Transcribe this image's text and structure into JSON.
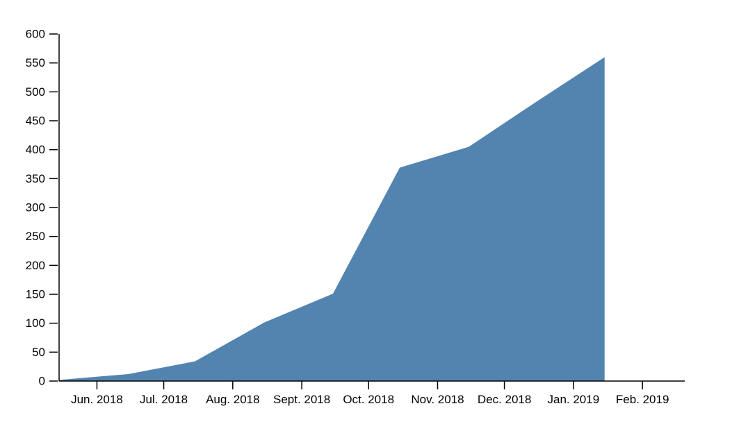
{
  "chart_data": {
    "type": "area",
    "title": "",
    "xlabel": "",
    "ylabel": "",
    "color": "#5384b0",
    "x": [
      "2018-05-15",
      "2018-06-15",
      "2018-07-15",
      "2018-08-15",
      "2018-09-15",
      "2018-10-15",
      "2018-11-15",
      "2018-12-15",
      "2019-01-15"
    ],
    "values": [
      2,
      12,
      34,
      101,
      151,
      369,
      405,
      482,
      560
    ],
    "ylim": [
      0,
      600
    ],
    "yticks": [
      0,
      50,
      100,
      150,
      200,
      250,
      300,
      350,
      400,
      450,
      500,
      550,
      600
    ],
    "xticks": [
      {
        "date": "2018-06-01",
        "label": "Jun. 2018"
      },
      {
        "date": "2018-07-01",
        "label": "Jul. 2018"
      },
      {
        "date": "2018-08-01",
        "label": "Aug. 2018"
      },
      {
        "date": "2018-09-01",
        "label": "Sept. 2018"
      },
      {
        "date": "2018-10-01",
        "label": "Oct. 2018"
      },
      {
        "date": "2018-11-01",
        "label": "Nov. 2018"
      },
      {
        "date": "2018-12-01",
        "label": "Dec. 2018"
      },
      {
        "date": "2019-01-01",
        "label": "Jan. 2019"
      },
      {
        "date": "2019-02-01",
        "label": "Feb. 2019"
      }
    ],
    "xlim": [
      "2018-05-15",
      "2019-02-20"
    ],
    "grid": false
  }
}
